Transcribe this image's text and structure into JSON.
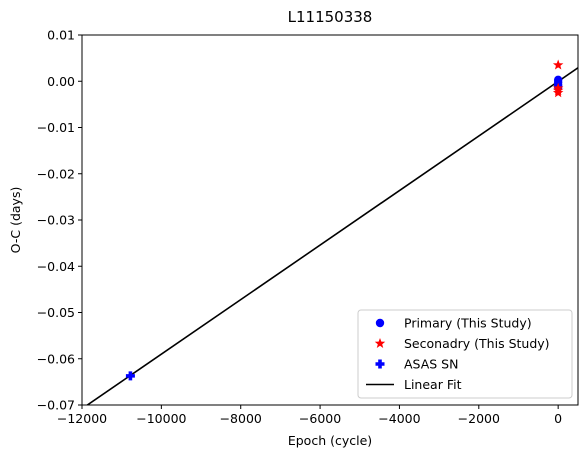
{
  "chart_data": {
    "type": "scatter",
    "title": "L11150338",
    "xlabel": "Epoch (cycle)",
    "ylabel": "O-C (days)",
    "xlim": [
      -12000,
      500
    ],
    "ylim": [
      -0.07,
      0.01
    ],
    "xticks": [
      -12000,
      -10000,
      -8000,
      -6000,
      -4000,
      -2000,
      0
    ],
    "xtick_labels": [
      "−12000",
      "−10000",
      "−8000",
      "−6000",
      "−4000",
      "−2000",
      "0"
    ],
    "yticks": [
      0.01,
      0.0,
      -0.01,
      -0.02,
      -0.03,
      -0.04,
      -0.05,
      -0.06,
      -0.07
    ],
    "ytick_labels": [
      "0.01",
      "0.00",
      "−0.01",
      "−0.02",
      "−0.03",
      "−0.04",
      "−0.05",
      "−0.06",
      "−0.07"
    ],
    "grid": false,
    "legend_position": "lower right",
    "series": [
      {
        "name": "Primary (This Study)",
        "marker": "circle",
        "color": "#0000ff",
        "points": [
          [
            0,
            0.0003
          ],
          [
            0,
            -0.0002
          ],
          [
            0,
            -0.0008
          ],
          [
            0,
            -0.0012
          ]
        ]
      },
      {
        "name": "Seconadry (This Study)",
        "marker": "star",
        "color": "#ff0000",
        "points": [
          [
            0,
            0.0035
          ],
          [
            0,
            -0.0015
          ],
          [
            0,
            -0.002
          ],
          [
            0,
            -0.0025
          ]
        ]
      },
      {
        "name": "ASAS SN",
        "marker": "plus",
        "color": "#0000ff",
        "points": [
          [
            -10780,
            -0.0637
          ]
        ]
      },
      {
        "name": "Linear Fit",
        "marker": "line",
        "color": "#000000",
        "points": [
          [
            -12000,
            -0.0708
          ],
          [
            500,
            0.0029
          ]
        ]
      }
    ]
  }
}
